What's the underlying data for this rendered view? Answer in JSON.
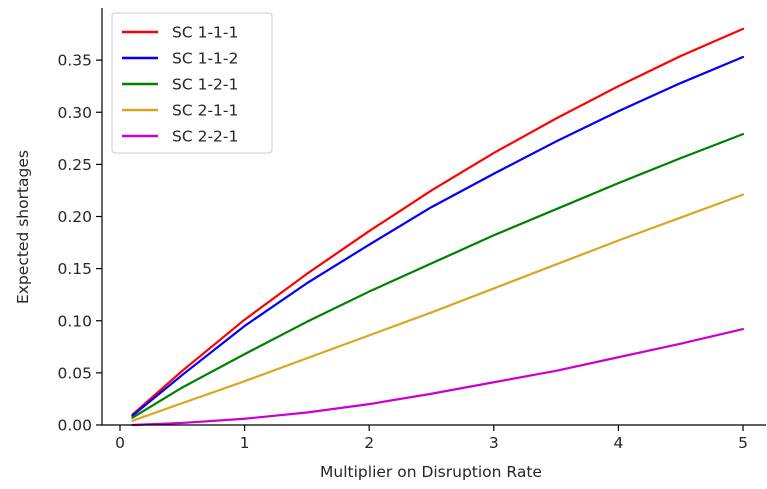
{
  "chart_data": {
    "type": "line",
    "title": "",
    "xlabel": "Multiplier on Disruption Rate",
    "ylabel": "Expected shortages",
    "xlim": [
      -0.05,
      5.2
    ],
    "ylim": [
      0,
      0.4
    ],
    "xticks": [
      0,
      1,
      2,
      3,
      4,
      5
    ],
    "xtick_labels": [
      "0",
      "1",
      "2",
      "3",
      "4",
      "5"
    ],
    "yticks": [
      0.0,
      0.05,
      0.1,
      0.15,
      0.2,
      0.25,
      0.3,
      0.35
    ],
    "ytick_labels": [
      "0.00",
      "0.05",
      "0.10",
      "0.15",
      "0.20",
      "0.25",
      "0.30",
      "0.35"
    ],
    "grid": false,
    "legend_position": "top-left",
    "x": [
      0.1,
      0.5,
      1,
      1.5,
      2,
      2.5,
      3,
      3.5,
      4,
      4.5,
      5
    ],
    "series": [
      {
        "name": "SC 1-1-1",
        "color": "#ff0000",
        "values": [
          0.01,
          0.052,
          0.101,
          0.145,
          0.186,
          0.225,
          0.261,
          0.294,
          0.325,
          0.354,
          0.38
        ]
      },
      {
        "name": "SC 1-1-2",
        "color": "#0000ff",
        "values": [
          0.009,
          0.048,
          0.095,
          0.136,
          0.173,
          0.209,
          0.241,
          0.272,
          0.301,
          0.328,
          0.353
        ]
      },
      {
        "name": "SC 1-2-1",
        "color": "#008000",
        "values": [
          0.007,
          0.036,
          0.068,
          0.099,
          0.128,
          0.155,
          0.182,
          0.207,
          0.232,
          0.256,
          0.279
        ]
      },
      {
        "name": "SC 2-1-1",
        "color": "#daa520",
        "values": [
          0.004,
          0.021,
          0.042,
          0.064,
          0.086,
          0.108,
          0.131,
          0.154,
          0.177,
          0.199,
          0.221
        ]
      },
      {
        "name": "SC 2-2-1",
        "color": "#cc00cc",
        "values": [
          0.0,
          0.002,
          0.006,
          0.012,
          0.02,
          0.03,
          0.041,
          0.052,
          0.065,
          0.078,
          0.092
        ]
      }
    ]
  }
}
